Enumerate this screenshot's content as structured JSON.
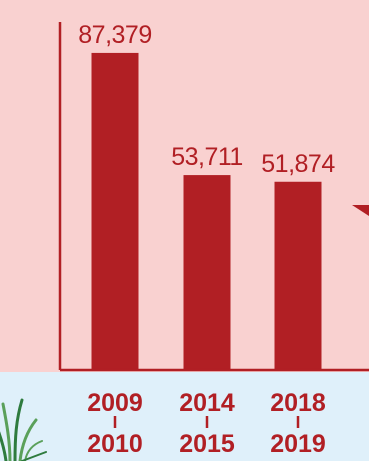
{
  "chart_data": {
    "type": "bar",
    "categories": [
      {
        "top": "2009",
        "bottom": "2010"
      },
      {
        "top": "2014",
        "bottom": "2015"
      },
      {
        "top": "2018",
        "bottom": "2019"
      }
    ],
    "values": [
      87379,
      53711,
      51874
    ],
    "value_labels": [
      "87,379",
      "53,711",
      "51,874"
    ],
    "title": "",
    "xlabel": "",
    "ylabel": "",
    "ylim": [
      0,
      97000
    ],
    "grid": false,
    "legend": "none"
  },
  "colors": {
    "background": "#f9d1d0",
    "lower_band": "#dff0fa",
    "bar": "#b11f24",
    "axis": "#b11f24",
    "grass": "#5aa05a",
    "grass_dark": "#2e7b3e"
  },
  "decorations": {
    "grass_icon": "grass-icon",
    "partial_marker_icon": "triangle-marker-icon"
  }
}
